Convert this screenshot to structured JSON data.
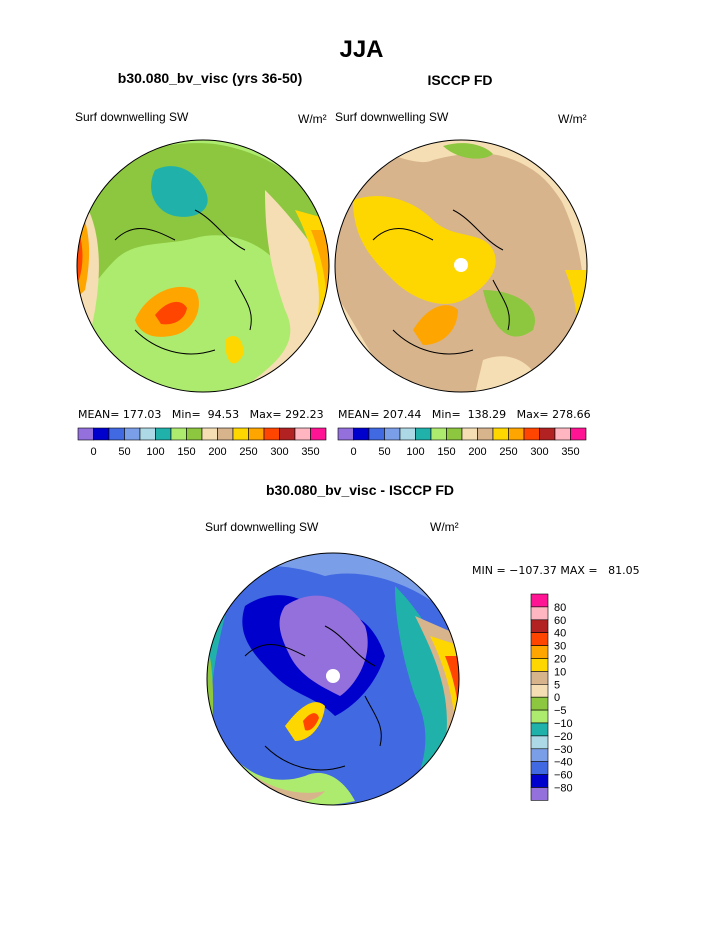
{
  "page": {
    "title": "JJA"
  },
  "chart_data": [
    {
      "type": "heatmap",
      "projection": "polar-stereographic",
      "title": "b30.080_bv_visc (yrs 36-50)",
      "left_label": "Surf downwelling SW",
      "units": "W/m²",
      "stats": {
        "mean_label": "MEAN=",
        "mean": "177.03",
        "min_label": "Min=",
        "min": "94.53",
        "max_label": "Max=",
        "max": "292.23"
      },
      "colorbar_ticks": [
        "0",
        "50",
        "100",
        "150",
        "200",
        "250",
        "300",
        "350"
      ],
      "colorbar_colors": [
        "#9370DB",
        "#0000CD",
        "#4169E1",
        "#7B9EE8",
        "#ADD8E6",
        "#20B2AA",
        "#ADEB6E",
        "#8DC63F",
        "#F5DEB3",
        "#D8B48C",
        "#FFD700",
        "#FFA500",
        "#FF4500",
        "#B22222",
        "#FFB6C1",
        "#FF1493"
      ]
    },
    {
      "type": "heatmap",
      "projection": "polar-stereographic",
      "title": "ISCCP FD",
      "left_label": "Surf downwelling SW",
      "units": "W/m²",
      "stats": {
        "mean_label": "MEAN=",
        "mean": "207.44",
        "min_label": "Min=",
        "min": "138.29",
        "max_label": "Max=",
        "max": "278.66"
      },
      "colorbar_ticks": [
        "0",
        "50",
        "100",
        "150",
        "200",
        "250",
        "300",
        "350"
      ],
      "colorbar_colors": [
        "#9370DB",
        "#0000CD",
        "#4169E1",
        "#7B9EE8",
        "#ADD8E6",
        "#20B2AA",
        "#ADEB6E",
        "#8DC63F",
        "#F5DEB3",
        "#D8B48C",
        "#FFD700",
        "#FFA500",
        "#FF4500",
        "#B22222",
        "#FFB6C1",
        "#FF1493"
      ]
    },
    {
      "type": "heatmap",
      "projection": "polar-stereographic",
      "title": "b30.080_bv_visc - ISCCP FD",
      "left_label": "Surf downwelling SW",
      "units": "W/m²",
      "minmax_label": "MIN = −107.37 MAX =   81.05",
      "colorbar_ticks": [
        "80",
        "60",
        "40",
        "30",
        "20",
        "10",
        "5",
        "0",
        "−5",
        "−10",
        "−20",
        "−30",
        "−40",
        "−60",
        "−80"
      ],
      "colorbar_colors": [
        "#FF1493",
        "#FFB6C1",
        "#B22222",
        "#FF4500",
        "#FFA500",
        "#FFD700",
        "#D8B48C",
        "#F5DEB3",
        "#8DC63F",
        "#ADEB6E",
        "#20B2AA",
        "#ADD8E6",
        "#7B9EE8",
        "#4169E1",
        "#0000CD",
        "#9370DB"
      ]
    }
  ]
}
